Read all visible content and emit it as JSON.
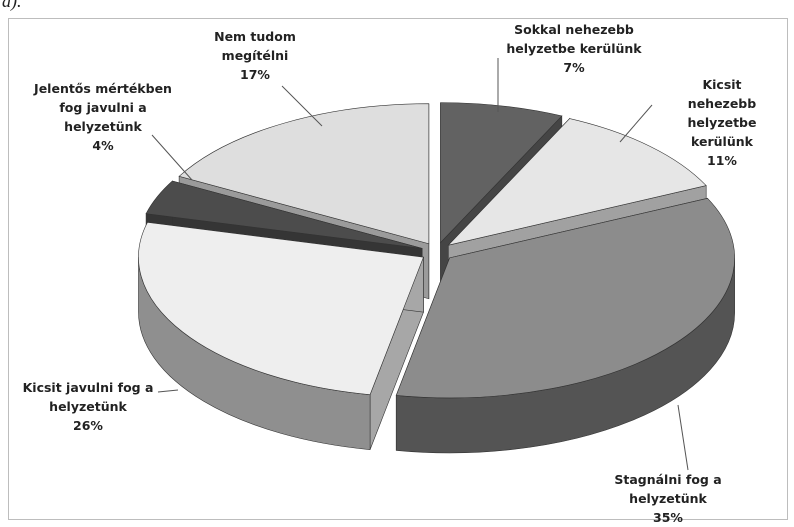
{
  "chart_data": {
    "type": "pie3d",
    "caption": "a).",
    "categories": [
      "Sokkal nehezebb\nhelyzetbe kerülünk",
      "Kicsit nehezebb\nhelyzetbe kerülünk",
      "Stagnálni fog a\nhelyzetünk",
      "Kicsit javulni fog a\nhelyzetünk",
      "Jelentős mértékben\nfog javulni a\nhelyzetünk",
      "Nem tudom\nmegítélni"
    ],
    "values": [
      7,
      11,
      35,
      26,
      4,
      17
    ],
    "value_labels": [
      "7%",
      "11%",
      "35%",
      "26%",
      "4%",
      "17%"
    ],
    "colors": [
      "#626262",
      "#e6e6e6",
      "#8c8c8c",
      "#eeeeee",
      "#4c4c4c",
      "#dedede"
    ]
  }
}
